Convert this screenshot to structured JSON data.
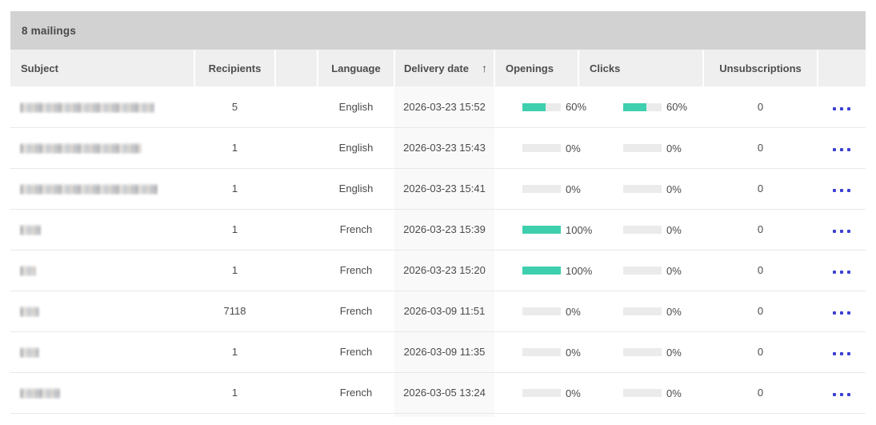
{
  "header": {
    "title": "8 mailings"
  },
  "colors": {
    "topbar_bg": "#d2d2d2",
    "header_bg": "#efefef",
    "date_col_bg": "#f9f9f9",
    "bar_track": "#ebebeb",
    "bar_fill": "#3ecfae",
    "dots_color": "#3c40d2",
    "text_color": "#4a4a4a",
    "row_border": "#e9e9e9"
  },
  "table": {
    "columns": {
      "subject": "Subject",
      "recipients": "Recipients",
      "spacer": "",
      "language": "Language",
      "delivery_date": "Delivery date",
      "delivery_date_sort_icon": "↑",
      "openings": "Openings",
      "clicks": "Clicks",
      "unsubscriptions": "Unsubscriptions",
      "actions": ""
    },
    "rows": [
      {
        "subject_redacted_width": 168,
        "recipients": "5",
        "language": "English",
        "delivery_date": "2026-03-23 15:52",
        "openings_pct": 60,
        "openings_label": "60%",
        "clicks_pct": 60,
        "clicks_label": "60%",
        "unsubscriptions": "0"
      },
      {
        "subject_redacted_width": 152,
        "recipients": "1",
        "language": "English",
        "delivery_date": "2026-03-23 15:43",
        "openings_pct": 0,
        "openings_label": "0%",
        "clicks_pct": 0,
        "clicks_label": "0%",
        "unsubscriptions": "0"
      },
      {
        "subject_redacted_width": 172,
        "recipients": "1",
        "language": "English",
        "delivery_date": "2026-03-23 15:41",
        "openings_pct": 0,
        "openings_label": "0%",
        "clicks_pct": 0,
        "clicks_label": "0%",
        "unsubscriptions": "0"
      },
      {
        "subject_redacted_width": 26,
        "recipients": "1",
        "language": "French",
        "delivery_date": "2026-03-23 15:39",
        "openings_pct": 100,
        "openings_label": "100%",
        "clicks_pct": 0,
        "clicks_label": "0%",
        "unsubscriptions": "0"
      },
      {
        "subject_redacted_width": 20,
        "recipients": "1",
        "language": "French",
        "delivery_date": "2026-03-23 15:20",
        "openings_pct": 100,
        "openings_label": "100%",
        "clicks_pct": 0,
        "clicks_label": "0%",
        "unsubscriptions": "0"
      },
      {
        "subject_redacted_width": 24,
        "recipients": "7118",
        "language": "French",
        "delivery_date": "2026-03-09 11:51",
        "openings_pct": 0,
        "openings_label": "0%",
        "clicks_pct": 0,
        "clicks_label": "0%",
        "unsubscriptions": "0"
      },
      {
        "subject_redacted_width": 24,
        "recipients": "1",
        "language": "French",
        "delivery_date": "2026-03-09 11:35",
        "openings_pct": 0,
        "openings_label": "0%",
        "clicks_pct": 0,
        "clicks_label": "0%",
        "unsubscriptions": "0"
      },
      {
        "subject_redacted_width": 50,
        "recipients": "1",
        "language": "French",
        "delivery_date": "2026-03-05 13:24",
        "openings_pct": 0,
        "openings_label": "0%",
        "clicks_pct": 0,
        "clicks_label": "0%",
        "unsubscriptions": "0"
      }
    ]
  }
}
